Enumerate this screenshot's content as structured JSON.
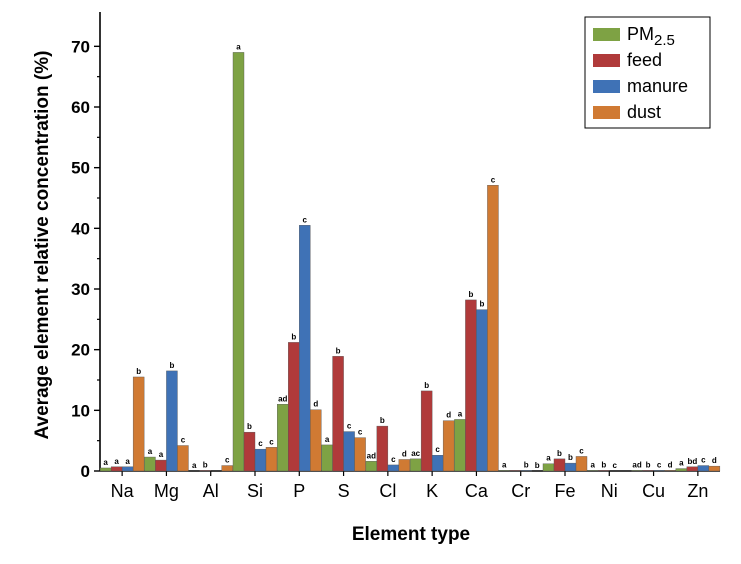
{
  "chart_data": {
    "type": "bar",
    "xlabel": "Element type",
    "ylabel": "Average element relative concentration (%)",
    "ylim": [
      0,
      75
    ],
    "yticks": [
      0,
      10,
      20,
      30,
      40,
      50,
      60,
      70
    ],
    "legend_placement": "top-right",
    "categories": [
      "Na",
      "Mg",
      "Al",
      "Si",
      "P",
      "S",
      "Cl",
      "K",
      "Ca",
      "Cr",
      "Fe",
      "Ni",
      "Cu",
      "Zn"
    ],
    "series": [
      {
        "name": "PM",
        "name_sub": "2.5",
        "color": "#7ea244",
        "values": [
          0.5,
          2.3,
          0,
          69,
          11,
          4.3,
          1.6,
          2,
          8.5,
          0.1,
          1.2,
          0.1,
          0.1,
          0.4
        ],
        "sig": [
          "a",
          "a",
          "a",
          "a",
          "ad",
          "a",
          "ad",
          "ac",
          "a",
          "a",
          "a",
          "a",
          "ad",
          "a"
        ]
      },
      {
        "name": "feed",
        "color": "#b03a3a",
        "values": [
          0.7,
          1.8,
          0.1,
          6.4,
          21.2,
          18.9,
          7.4,
          13.2,
          28.2,
          0.1,
          2,
          0.1,
          0.1,
          0.7
        ],
        "sig": [
          "a",
          "a",
          "b",
          "b",
          "b",
          "b",
          "b",
          "b",
          "b",
          "",
          "b",
          "b",
          "b",
          "bd"
        ]
      },
      {
        "name": "manure",
        "color": "#3f72b6",
        "values": [
          0.7,
          16.5,
          0,
          3.6,
          40.5,
          6.5,
          1,
          2.6,
          26.6,
          0.1,
          1.3,
          0,
          0.1,
          0.9
        ],
        "sig": [
          "a",
          "b",
          "",
          "c",
          "c",
          "c",
          "c",
          "c",
          "b",
          "b",
          "b",
          "c",
          "c",
          "c"
        ]
      },
      {
        "name": "dust",
        "color": "#d07a33",
        "values": [
          15.5,
          4.2,
          0.9,
          3.9,
          10.1,
          5.5,
          1.9,
          8.3,
          47.1,
          0,
          2.4,
          0,
          0.1,
          0.8
        ],
        "sig": [
          "b",
          "c",
          "c",
          "c",
          "d",
          "c",
          "d",
          "d",
          "c",
          "b",
          "c",
          "",
          "d",
          "d"
        ]
      }
    ]
  }
}
